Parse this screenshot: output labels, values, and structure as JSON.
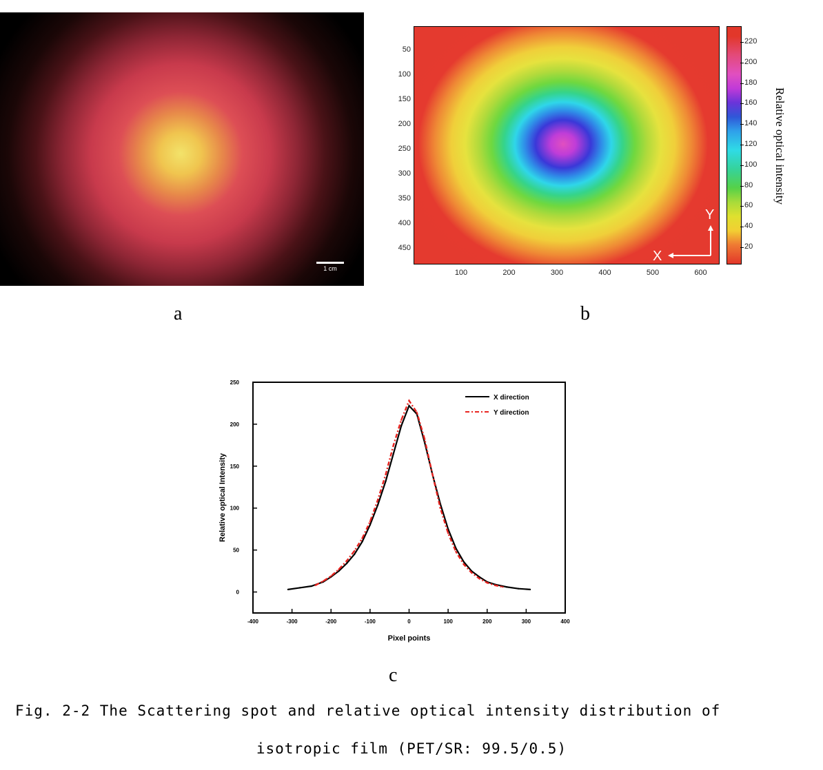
{
  "panel_a": {
    "scale_bar_label": "1 cm",
    "letter": "a"
  },
  "panel_b": {
    "letter": "b",
    "y_ticks": [
      "50",
      "100",
      "150",
      "200",
      "250",
      "300",
      "350",
      "400",
      "450"
    ],
    "x_ticks": [
      "100",
      "200",
      "300",
      "400",
      "500",
      "600"
    ],
    "colorbar_ticks": [
      "220",
      "200",
      "180",
      "160",
      "140",
      "120",
      "100",
      "80",
      "60",
      "40",
      "20"
    ],
    "colorbar_title": "Relative optical intensity",
    "axis_x_label": "X",
    "axis_y_label": "Y",
    "colors": {
      "background": "#e43a2f",
      "center": "#e14fc0"
    }
  },
  "panel_c": {
    "letter": "c",
    "chart_data": {
      "type": "line",
      "xlabel": "Pixel points",
      "ylabel": "Relative optical Intensity",
      "x_ticks": [
        "-400",
        "-300",
        "-200",
        "-100",
        "0",
        "100",
        "200",
        "300",
        "400"
      ],
      "y_ticks": [
        "0",
        "50",
        "100",
        "150",
        "200",
        "250"
      ],
      "xlim": [
        -400,
        400
      ],
      "ylim": [
        -25,
        250
      ],
      "legend_position": "top-right",
      "series": [
        {
          "name": "X direction",
          "color": "#000000",
          "style": "solid",
          "x": [
            -310,
            -280,
            -250,
            -220,
            -200,
            -180,
            -160,
            -140,
            -120,
            -100,
            -80,
            -60,
            -40,
            -20,
            0,
            20,
            40,
            60,
            80,
            100,
            120,
            140,
            160,
            180,
            200,
            220,
            250,
            280,
            310
          ],
          "y": [
            3,
            5,
            7,
            12,
            18,
            25,
            34,
            45,
            60,
            80,
            104,
            132,
            165,
            198,
            222,
            212,
            178,
            140,
            105,
            75,
            52,
            36,
            25,
            18,
            12,
            9,
            6,
            4,
            3
          ]
        },
        {
          "name": "Y direction",
          "color": "#e8231f",
          "style": "dash-dot",
          "x": [
            -240,
            -220,
            -200,
            -180,
            -160,
            -140,
            -120,
            -100,
            -80,
            -60,
            -40,
            -20,
            0,
            20,
            40,
            60,
            80,
            100,
            120,
            140,
            160,
            180,
            200,
            220,
            240
          ],
          "y": [
            8,
            13,
            19,
            27,
            37,
            49,
            64,
            84,
            110,
            140,
            175,
            205,
            228,
            214,
            182,
            140,
            100,
            70,
            48,
            33,
            23,
            16,
            11,
            8,
            6
          ]
        }
      ]
    }
  },
  "caption": {
    "line1": "Fig. 2-2 The Scattering spot and relative optical intensity distribution of",
    "line2": "isotropic film (PET/SR: 99.5/0.5)"
  }
}
